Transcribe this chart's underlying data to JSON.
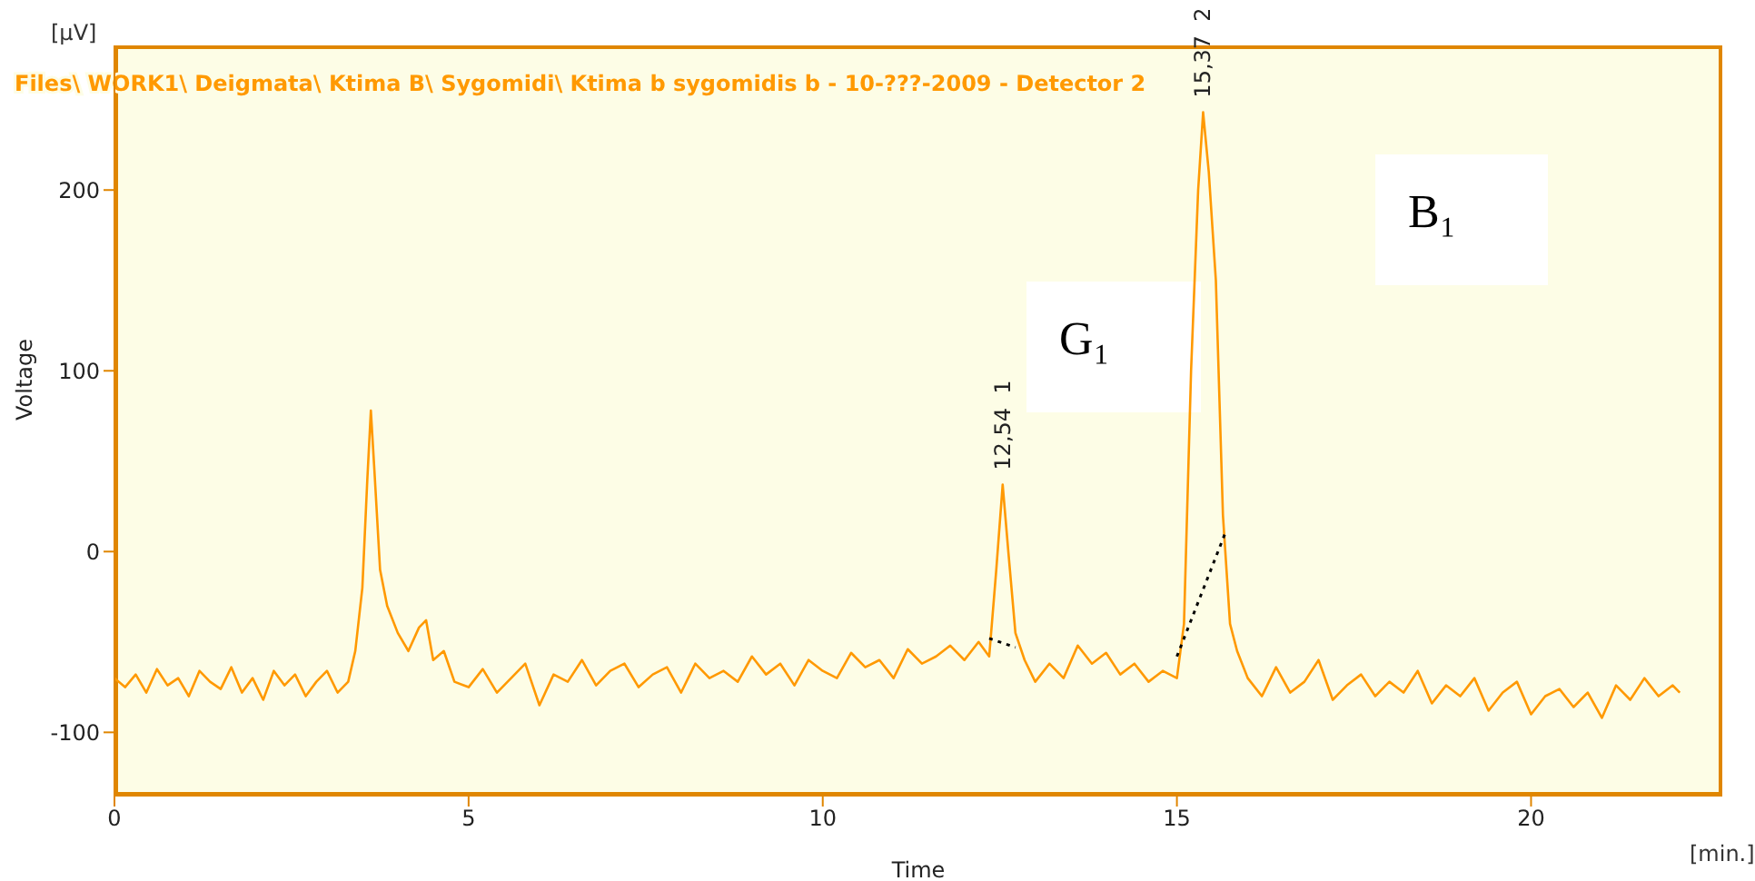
{
  "chart_data": {
    "type": "line",
    "title": "Files\\ WORK1\\ Deigmata\\ Ktima B\\ Sygomidi\\ Ktima b sygomidis b - 10-???-2009 - Detector 2",
    "xlabel": "Time",
    "ylabel": "Voltage",
    "annotations": [
      "G₁",
      "B₁",
      "[µV]",
      "[min.]",
      {
        "text": "12,54  1",
        "x": 12.54,
        "y": 37
      },
      {
        "text": "15,37  2",
        "x": 15.37,
        "y": 243
      }
    ],
    "xlim": [
      0,
      22.7
    ],
    "ylim": [
      -135,
      280
    ],
    "xticks": [
      0,
      5,
      10,
      15,
      20
    ],
    "yticks": [
      -100,
      0,
      100,
      200
    ],
    "grid": false,
    "legend": false,
    "marker": "none",
    "series": [
      {
        "color": "#ff9900",
        "line_style": "solid",
        "x": [
          0,
          0.15,
          0.3,
          0.45,
          0.6,
          0.75,
          0.9,
          1.05,
          1.2,
          1.35,
          1.5,
          1.65,
          1.8,
          1.95,
          2.1,
          2.25,
          2.4,
          2.55,
          2.7,
          2.85,
          3.0,
          3.15,
          3.3,
          3.4,
          3.5,
          3.57,
          3.62,
          3.67,
          3.75,
          3.85,
          4.0,
          4.15,
          4.3,
          4.4,
          4.5,
          4.65,
          4.8,
          5.0,
          5.2,
          5.4,
          5.6,
          5.8,
          6.0,
          6.2,
          6.4,
          6.6,
          6.8,
          7.0,
          7.2,
          7.4,
          7.6,
          7.8,
          8.0,
          8.2,
          8.4,
          8.6,
          8.8,
          9.0,
          9.2,
          9.4,
          9.6,
          9.8,
          10.0,
          10.2,
          10.4,
          10.6,
          10.8,
          11.0,
          11.2,
          11.4,
          11.6,
          11.8,
          12.0,
          12.2,
          12.35,
          12.45,
          12.54,
          12.62,
          12.72,
          12.85,
          13.0,
          13.2,
          13.4,
          13.6,
          13.8,
          14.0,
          14.2,
          14.4,
          14.6,
          14.8,
          15.0,
          15.1,
          15.2,
          15.3,
          15.37,
          15.45,
          15.55,
          15.65,
          15.75,
          15.85,
          16.0,
          16.2,
          16.4,
          16.6,
          16.8,
          17.0,
          17.2,
          17.4,
          17.6,
          17.8,
          18.0,
          18.2,
          18.4,
          18.6,
          18.8,
          19.0,
          19.2,
          19.4,
          19.6,
          19.8,
          20.0,
          20.2,
          20.4,
          20.6,
          20.8,
          21.0,
          21.2,
          21.4,
          21.6,
          21.8,
          22.0,
          22.1
        ],
        "values": [
          -70,
          -75,
          -68,
          -78,
          -65,
          -74,
          -70,
          -80,
          -66,
          -72,
          -76,
          -64,
          -78,
          -70,
          -82,
          -66,
          -74,
          -68,
          -80,
          -72,
          -66,
          -78,
          -72,
          -55,
          -20,
          40,
          78,
          45,
          -10,
          -30,
          -45,
          -55,
          -42,
          -38,
          -60,
          -55,
          -72,
          -75,
          -65,
          -78,
          -70,
          -62,
          -85,
          -68,
          -72,
          -60,
          -74,
          -66,
          -62,
          -75,
          -68,
          -64,
          -78,
          -62,
          -70,
          -66,
          -72,
          -58,
          -68,
          -62,
          -74,
          -60,
          -66,
          -70,
          -56,
          -64,
          -60,
          -70,
          -54,
          -62,
          -58,
          -52,
          -60,
          -50,
          -58,
          -10,
          37,
          0,
          -45,
          -60,
          -72,
          -62,
          -70,
          -52,
          -62,
          -56,
          -68,
          -62,
          -72,
          -66,
          -70,
          -40,
          100,
          200,
          243,
          210,
          150,
          20,
          -40,
          -55,
          -70,
          -80,
          -64,
          -78,
          -72,
          -60,
          -82,
          -74,
          -68,
          -80,
          -72,
          -78,
          -66,
          -84,
          -74,
          -80,
          -70,
          -88,
          -78,
          -72,
          -90,
          -80,
          -76,
          -86,
          -78,
          -92,
          -74,
          -82,
          -70,
          -80,
          -74,
          -78
        ]
      },
      {
        "color": "#000000",
        "line_style": "dotted",
        "x": [
          12.35,
          12.72
        ],
        "values": [
          -48,
          -53
        ]
      },
      {
        "color": "#000000",
        "line_style": "dotted",
        "x": [
          15.0,
          15.7
        ],
        "values": [
          -58,
          12
        ]
      }
    ]
  }
}
